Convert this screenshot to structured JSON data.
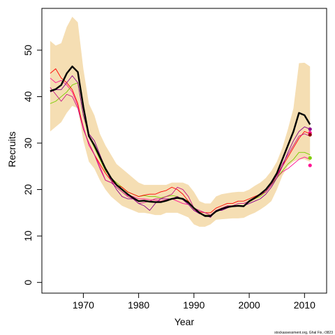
{
  "chart_data": {
    "type": "line",
    "xlabel": "Year",
    "ylabel": "Recruits",
    "xlim": [
      1962.5,
      2014
    ],
    "ylim": [
      -2.3,
      59
    ],
    "x_ticks": [
      1970,
      1980,
      1990,
      2000,
      2010
    ],
    "y_ticks": [
      0,
      10,
      20,
      30,
      40,
      50
    ],
    "credit": "stockassessment.org, Ghal Fix, r3823",
    "grid": false,
    "band": {
      "color": "#F5DEB3",
      "x": [
        1964,
        1965,
        1966,
        1967,
        1968,
        1969,
        1970,
        1971,
        1972,
        1973,
        1974,
        1975,
        1976,
        1977,
        1978,
        1979,
        1980,
        1981,
        1982,
        1983,
        1984,
        1985,
        1986,
        1987,
        1988,
        1989,
        1990,
        1991,
        1992,
        1993,
        1994,
        1995,
        1996,
        1997,
        1998,
        1999,
        2000,
        2001,
        2002,
        2003,
        2004,
        2005,
        2006,
        2007,
        2008,
        2009,
        2010,
        2011
      ],
      "upper": [
        52,
        51,
        51.5,
        55,
        57.2,
        56,
        46,
        38.5,
        36,
        32,
        29.5,
        27.5,
        25.5,
        24.5,
        23.5,
        22.5,
        21.5,
        21,
        21,
        21,
        21,
        21,
        21.5,
        21.5,
        21.5,
        21,
        19.5,
        17.5,
        17,
        17,
        18.5,
        19,
        19.2,
        19.4,
        19.5,
        19.5,
        20,
        20.8,
        21.5,
        22.5,
        24,
        26,
        29,
        33,
        37.5,
        47.2,
        47.3,
        46.5
      ],
      "lower": [
        32.5,
        33.5,
        34.5,
        36.5,
        38,
        37.5,
        30.5,
        26,
        24.5,
        22,
        20,
        18.5,
        17.5,
        16.5,
        16,
        15.5,
        15,
        15,
        14.8,
        14.5,
        14.5,
        15,
        15,
        15,
        14.5,
        14,
        12.5,
        12,
        12,
        12.5,
        13.5,
        13.6,
        13.7,
        13.8,
        13.8,
        13.9,
        14.5,
        15,
        15.7,
        16.5,
        17.5,
        20,
        23,
        25,
        26,
        26.5,
        26.5,
        26
      ]
    },
    "series": [
      {
        "color": "#000000",
        "x": [
          1964,
          1965,
          1966,
          1967,
          1968,
          1969,
          1970,
          1971,
          1972,
          1973,
          1974,
          1975,
          1976,
          1977,
          1978,
          1979,
          1980,
          1981,
          1982,
          1983,
          1984,
          1985,
          1986,
          1987,
          1988,
          1989,
          1990,
          1991,
          1992,
          1993,
          1994,
          1995,
          1996,
          1997,
          1998,
          1999,
          2000,
          2001,
          2002,
          2003,
          2004,
          2005,
          2006,
          2007,
          2008,
          2009,
          2010,
          2011
        ],
        "y": [
          41.2,
          41.6,
          42.5,
          45,
          46.5,
          45.3,
          37.8,
          31.5,
          29.5,
          27,
          24.5,
          22.5,
          21,
          20,
          19,
          18.2,
          17.5,
          17.6,
          17.4,
          17.3,
          17.3,
          17.6,
          18,
          18.2,
          18,
          17.2,
          16,
          15,
          14.3,
          14.3,
          15.3,
          15.8,
          16.2,
          16.4,
          16.5,
          16.4,
          17.5,
          18.2,
          19,
          20,
          21.5,
          23.5,
          26.5,
          29.5,
          32.5,
          36.5,
          36,
          34
        ]
      },
      {
        "color": "#FF1493",
        "x": [
          1964,
          1965,
          1966,
          1967,
          1968,
          1969,
          1970,
          1971,
          1972,
          1973,
          1974,
          1975,
          1976,
          1977,
          1978,
          1979,
          1980,
          1981,
          1982,
          1983,
          1984,
          1985,
          1986,
          1987,
          1988,
          1989,
          1990,
          1991,
          1992,
          1993,
          1994,
          1995,
          1996,
          1997,
          1998,
          1999,
          2000,
          2001,
          2002,
          2003,
          2004,
          2005,
          2006,
          2007,
          2008,
          2009,
          2010,
          2011
        ],
        "y": [
          44,
          43,
          43.5,
          42.5,
          41,
          38,
          33.5,
          29.5,
          27.5,
          25,
          22,
          21.5,
          21,
          20,
          18.7,
          18.5,
          18,
          18,
          17.8,
          17.7,
          17.5,
          17.8,
          18,
          17.5,
          17,
          16.8,
          15.5,
          15,
          14.5,
          14.5,
          15.5,
          16,
          16.3,
          16.5,
          16.5,
          16.5,
          17.3,
          18,
          18.8,
          19.5,
          21,
          22.5,
          23.8,
          24.5,
          25.5,
          26.5,
          27,
          26.5
        ]
      },
      {
        "color": "#7CCD00",
        "x": [
          1964,
          1965,
          1966,
          1967,
          1968,
          1969,
          1970,
          1971,
          1972,
          1973,
          1974,
          1975,
          1976,
          1977,
          1978,
          1979,
          1980,
          1981,
          1982,
          1983,
          1984,
          1985,
          1986,
          1987,
          1988,
          1989,
          1990,
          1991,
          1992,
          1993,
          1994,
          1995,
          1996,
          1997,
          1998,
          1999,
          2000,
          2001,
          2002,
          2003,
          2004,
          2005,
          2006,
          2007,
          2008,
          2009,
          2010,
          2011
        ],
        "y": [
          38.5,
          39,
          40,
          41,
          42.5,
          43,
          36,
          31.5,
          29,
          26.5,
          24,
          22.5,
          21.5,
          20.5,
          19.5,
          19,
          18.5,
          18.7,
          18.5,
          18.5,
          18.2,
          18.5,
          18.7,
          18.5,
          18,
          17.5,
          16,
          15,
          14.5,
          14.5,
          15.5,
          16,
          16.3,
          16.5,
          16.5,
          16.5,
          17.3,
          18,
          18.5,
          19.5,
          21,
          22.5,
          24,
          25.5,
          26.5,
          28,
          28,
          27.5
        ]
      },
      {
        "color": "#FF0000",
        "x": [
          1964,
          1965,
          1966,
          1967,
          1968,
          1969,
          1970,
          1971,
          1972,
          1973,
          1974,
          1975,
          1976,
          1977,
          1978,
          1979,
          1980,
          1981,
          1982,
          1983,
          1984,
          1985,
          1986,
          1987,
          1988,
          1989,
          1990,
          1991,
          1992,
          1993,
          1994,
          1995,
          1996,
          1997,
          1998,
          1999,
          2000,
          2001,
          2002,
          2003,
          2004,
          2005,
          2006,
          2007,
          2008,
          2009,
          2010,
          2011
        ],
        "y": [
          45,
          46,
          44,
          43,
          41.5,
          38.5,
          33,
          30,
          27.5,
          25.5,
          23.5,
          22,
          21,
          20.5,
          19.5,
          19,
          18.5,
          18.8,
          19,
          19,
          19.5,
          19.8,
          20.5,
          20,
          19,
          17.5,
          15.8,
          15.2,
          15,
          15,
          16,
          16.5,
          17,
          17,
          17.5,
          17.5,
          18,
          18.5,
          19,
          19.5,
          21,
          23,
          25,
          27,
          29,
          31,
          32.5,
          32
        ]
      },
      {
        "color": "#C71585",
        "x": [
          1964,
          1965,
          1966,
          1967,
          1968,
          1969,
          1970,
          1971,
          1972,
          1973,
          1974,
          1975,
          1976,
          1977,
          1978,
          1979,
          1980,
          1981,
          1982,
          1983,
          1984,
          1985,
          1986,
          1987,
          1988,
          1989,
          1990,
          1991,
          1992,
          1993,
          1994,
          1995,
          1996,
          1997,
          1998,
          1999,
          2000,
          2001,
          2002,
          2003,
          2004,
          2005,
          2006,
          2007,
          2008,
          2009,
          2010,
          2011
        ],
        "y": [
          42,
          40.5,
          39,
          40.5,
          40,
          37.5,
          33,
          30,
          27.5,
          24.5,
          22,
          21.5,
          20.5,
          19.5,
          18.5,
          18,
          17,
          17.2,
          17.5,
          18,
          18,
          18.5,
          19,
          20.5,
          20,
          18.5,
          16,
          15.5,
          15,
          14.5,
          15.5,
          16,
          16.5,
          16.5,
          17,
          17,
          17.5,
          18,
          19,
          19.5,
          21,
          23,
          25.5,
          27.5,
          29.5,
          31.5,
          32,
          31.5
        ]
      },
      {
        "color": "#8B008B",
        "x": [
          1964,
          1965,
          1966,
          1967,
          1968,
          1969,
          1970,
          1971,
          1972,
          1973,
          1974,
          1975,
          1976,
          1977,
          1978,
          1979,
          1980,
          1981,
          1982,
          1983,
          1984,
          1985,
          1986,
          1987,
          1988,
          1989,
          1990,
          1991,
          1992,
          1993,
          1994,
          1995,
          1996,
          1997,
          1998,
          1999,
          2000,
          2001,
          2002,
          2003,
          2004,
          2005,
          2006,
          2007,
          2008,
          2009,
          2010,
          2011
        ],
        "y": [
          41,
          41.5,
          41.5,
          43,
          44.5,
          43,
          36,
          32,
          30.5,
          27.5,
          24.5,
          22,
          20,
          18.5,
          18,
          18,
          17,
          16.5,
          15.5,
          17,
          18,
          18,
          18,
          18.5,
          17.8,
          16.8,
          15.5,
          14.8,
          14.5,
          14,
          15.5,
          15.5,
          16,
          16.5,
          16.5,
          16.5,
          17,
          17.5,
          18,
          19,
          20.5,
          22.5,
          25,
          28,
          30.5,
          32.5,
          33.5,
          33
        ]
      }
    ],
    "end_points": [
      {
        "x": 2011,
        "y": 33.0,
        "color": "#8B008B"
      },
      {
        "x": 2011,
        "y": 32.2,
        "color": "#FF1493"
      },
      {
        "x": 2011,
        "y": 31.8,
        "color": "#8B0000"
      },
      {
        "x": 2011,
        "y": 26.8,
        "color": "#7CCD00"
      },
      {
        "x": 2011,
        "y": 25.2,
        "color": "#FF1493"
      }
    ]
  }
}
